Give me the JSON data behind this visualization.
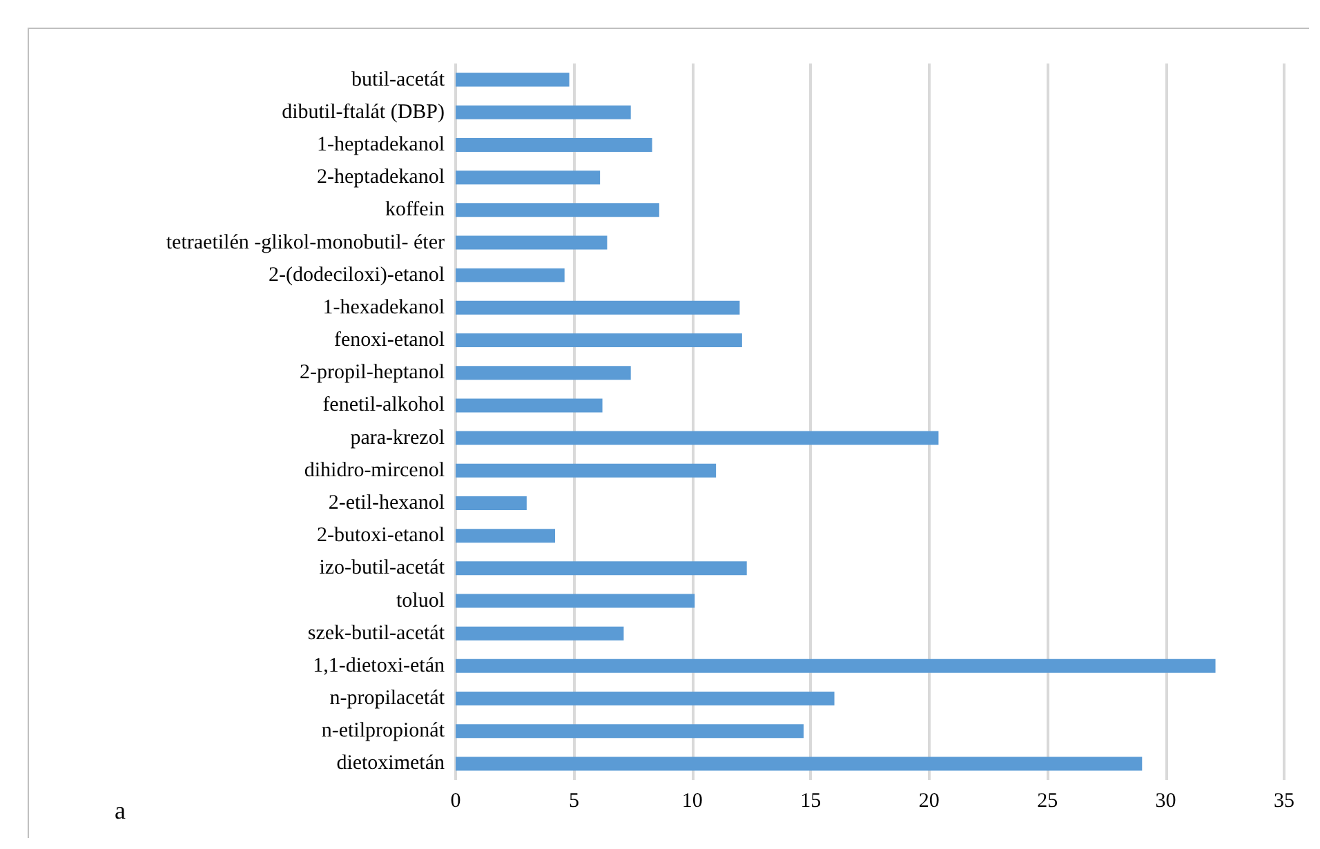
{
  "chart_data": {
    "type": "bar",
    "orientation": "horizontal",
    "categories": [
      "butil-acetát",
      "dibutil-ftalát (DBP)",
      "1-heptadekanol",
      "2-heptadekanol",
      "koffein",
      "tetraetilén -glikol-monobutil- éter",
      "2-(dodeciloxi)-etanol",
      "1-hexadekanol",
      "fenoxi-etanol",
      "2-propil-heptanol",
      "fenetil-alkohol",
      "para-krezol",
      "dihidro-mircenol",
      "2-etil-hexanol",
      "2-butoxi-etanol",
      "izo-butil-acetát",
      "toluol",
      "szek-butil-acetát",
      "1,1-dietoxi-etán",
      "n-propilacetát",
      "n-etilpropionát",
      "dietoximetán"
    ],
    "values": [
      4.8,
      7.4,
      8.3,
      6.1,
      8.6,
      6.4,
      4.6,
      12.0,
      12.1,
      7.4,
      6.2,
      20.4,
      11.0,
      3.0,
      4.2,
      12.3,
      10.1,
      7.1,
      32.1,
      16.0,
      14.7,
      29.0
    ],
    "color": "#5b9bd5",
    "xlim": [
      0,
      35
    ],
    "xticks": [
      0,
      5,
      10,
      15,
      20,
      25,
      30,
      35
    ],
    "grid": "x",
    "annotations": [
      "a"
    ]
  }
}
